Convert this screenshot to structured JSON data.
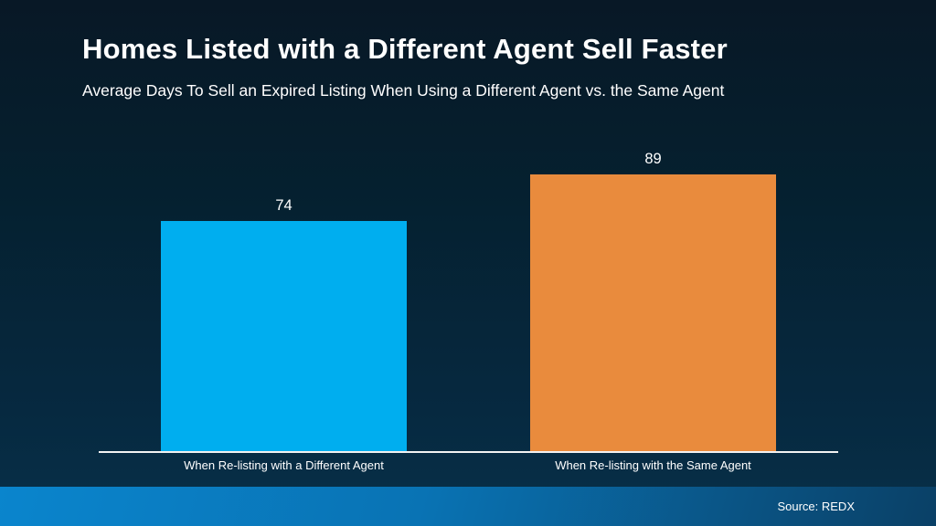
{
  "slide": {
    "title": "Homes Listed with a Different Agent Sell Faster",
    "subtitle": "Average Days To Sell an Expired Listing When Using a Different Agent vs. the Same Agent"
  },
  "chart_data": {
    "type": "bar",
    "title": "Homes Listed with a Different Agent Sell Faster",
    "subtitle": "Average Days To Sell an Expired Listing When Using a Different Agent vs. the Same Agent",
    "categories": [
      "When Re-listing with a Different Agent",
      "When Re-listing with the Same Agent"
    ],
    "values": [
      74,
      89
    ],
    "bar_colors": [
      "#00aeef",
      "#e98b3d"
    ],
    "xlabel": "",
    "ylabel": "",
    "ylim": [
      0,
      100
    ],
    "grid": false,
    "legend": false,
    "value_labels_shown": true,
    "axis_line_color": "#f2f2f2",
    "value_label_color": "#ffffff"
  },
  "footer": {
    "source_label": "Source: REDX",
    "gradient_left": "#0a85cd",
    "gradient_mid": "#0973b4",
    "gradient_right": "#0a4066"
  },
  "theme": {
    "background_top": "#081826",
    "background_bottom": "#083049",
    "text_color": "#ffffff"
  }
}
